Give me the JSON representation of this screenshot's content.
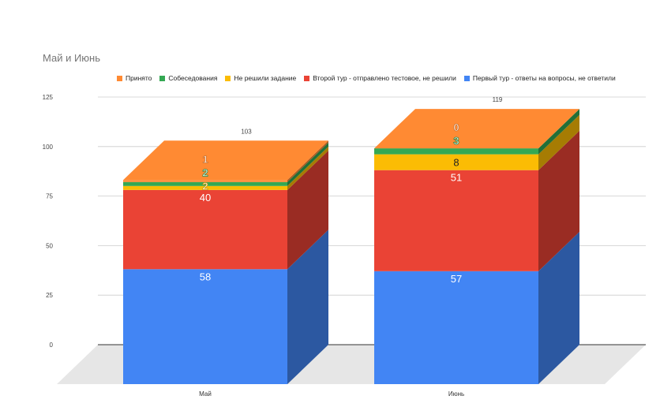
{
  "chart_data": {
    "type": "bar",
    "stacked": true,
    "style": "3d",
    "title": "Май и Июнь",
    "categories": [
      "Май",
      "Июнь"
    ],
    "series": [
      {
        "name": "Первый тур - ответы на вопросы, не ответили",
        "values": [
          58,
          57
        ],
        "color": "#4285f4"
      },
      {
        "name": "Второй тур - отправлено тестовое, не решили",
        "values": [
          40,
          51
        ],
        "color": "#ea4335"
      },
      {
        "name": "Не решили задание",
        "values": [
          2,
          8
        ],
        "color": "#fbbc04"
      },
      {
        "name": "Собеседования",
        "values": [
          2,
          3
        ],
        "color": "#34a853"
      },
      {
        "name": "Принято",
        "values": [
          1,
          0
        ],
        "color": "#ff8a33"
      }
    ],
    "totals": [
      103,
      119
    ],
    "yticks": [
      0,
      25,
      50,
      75,
      100,
      125
    ],
    "ylim": [
      0,
      125
    ],
    "legend_position": "top"
  }
}
